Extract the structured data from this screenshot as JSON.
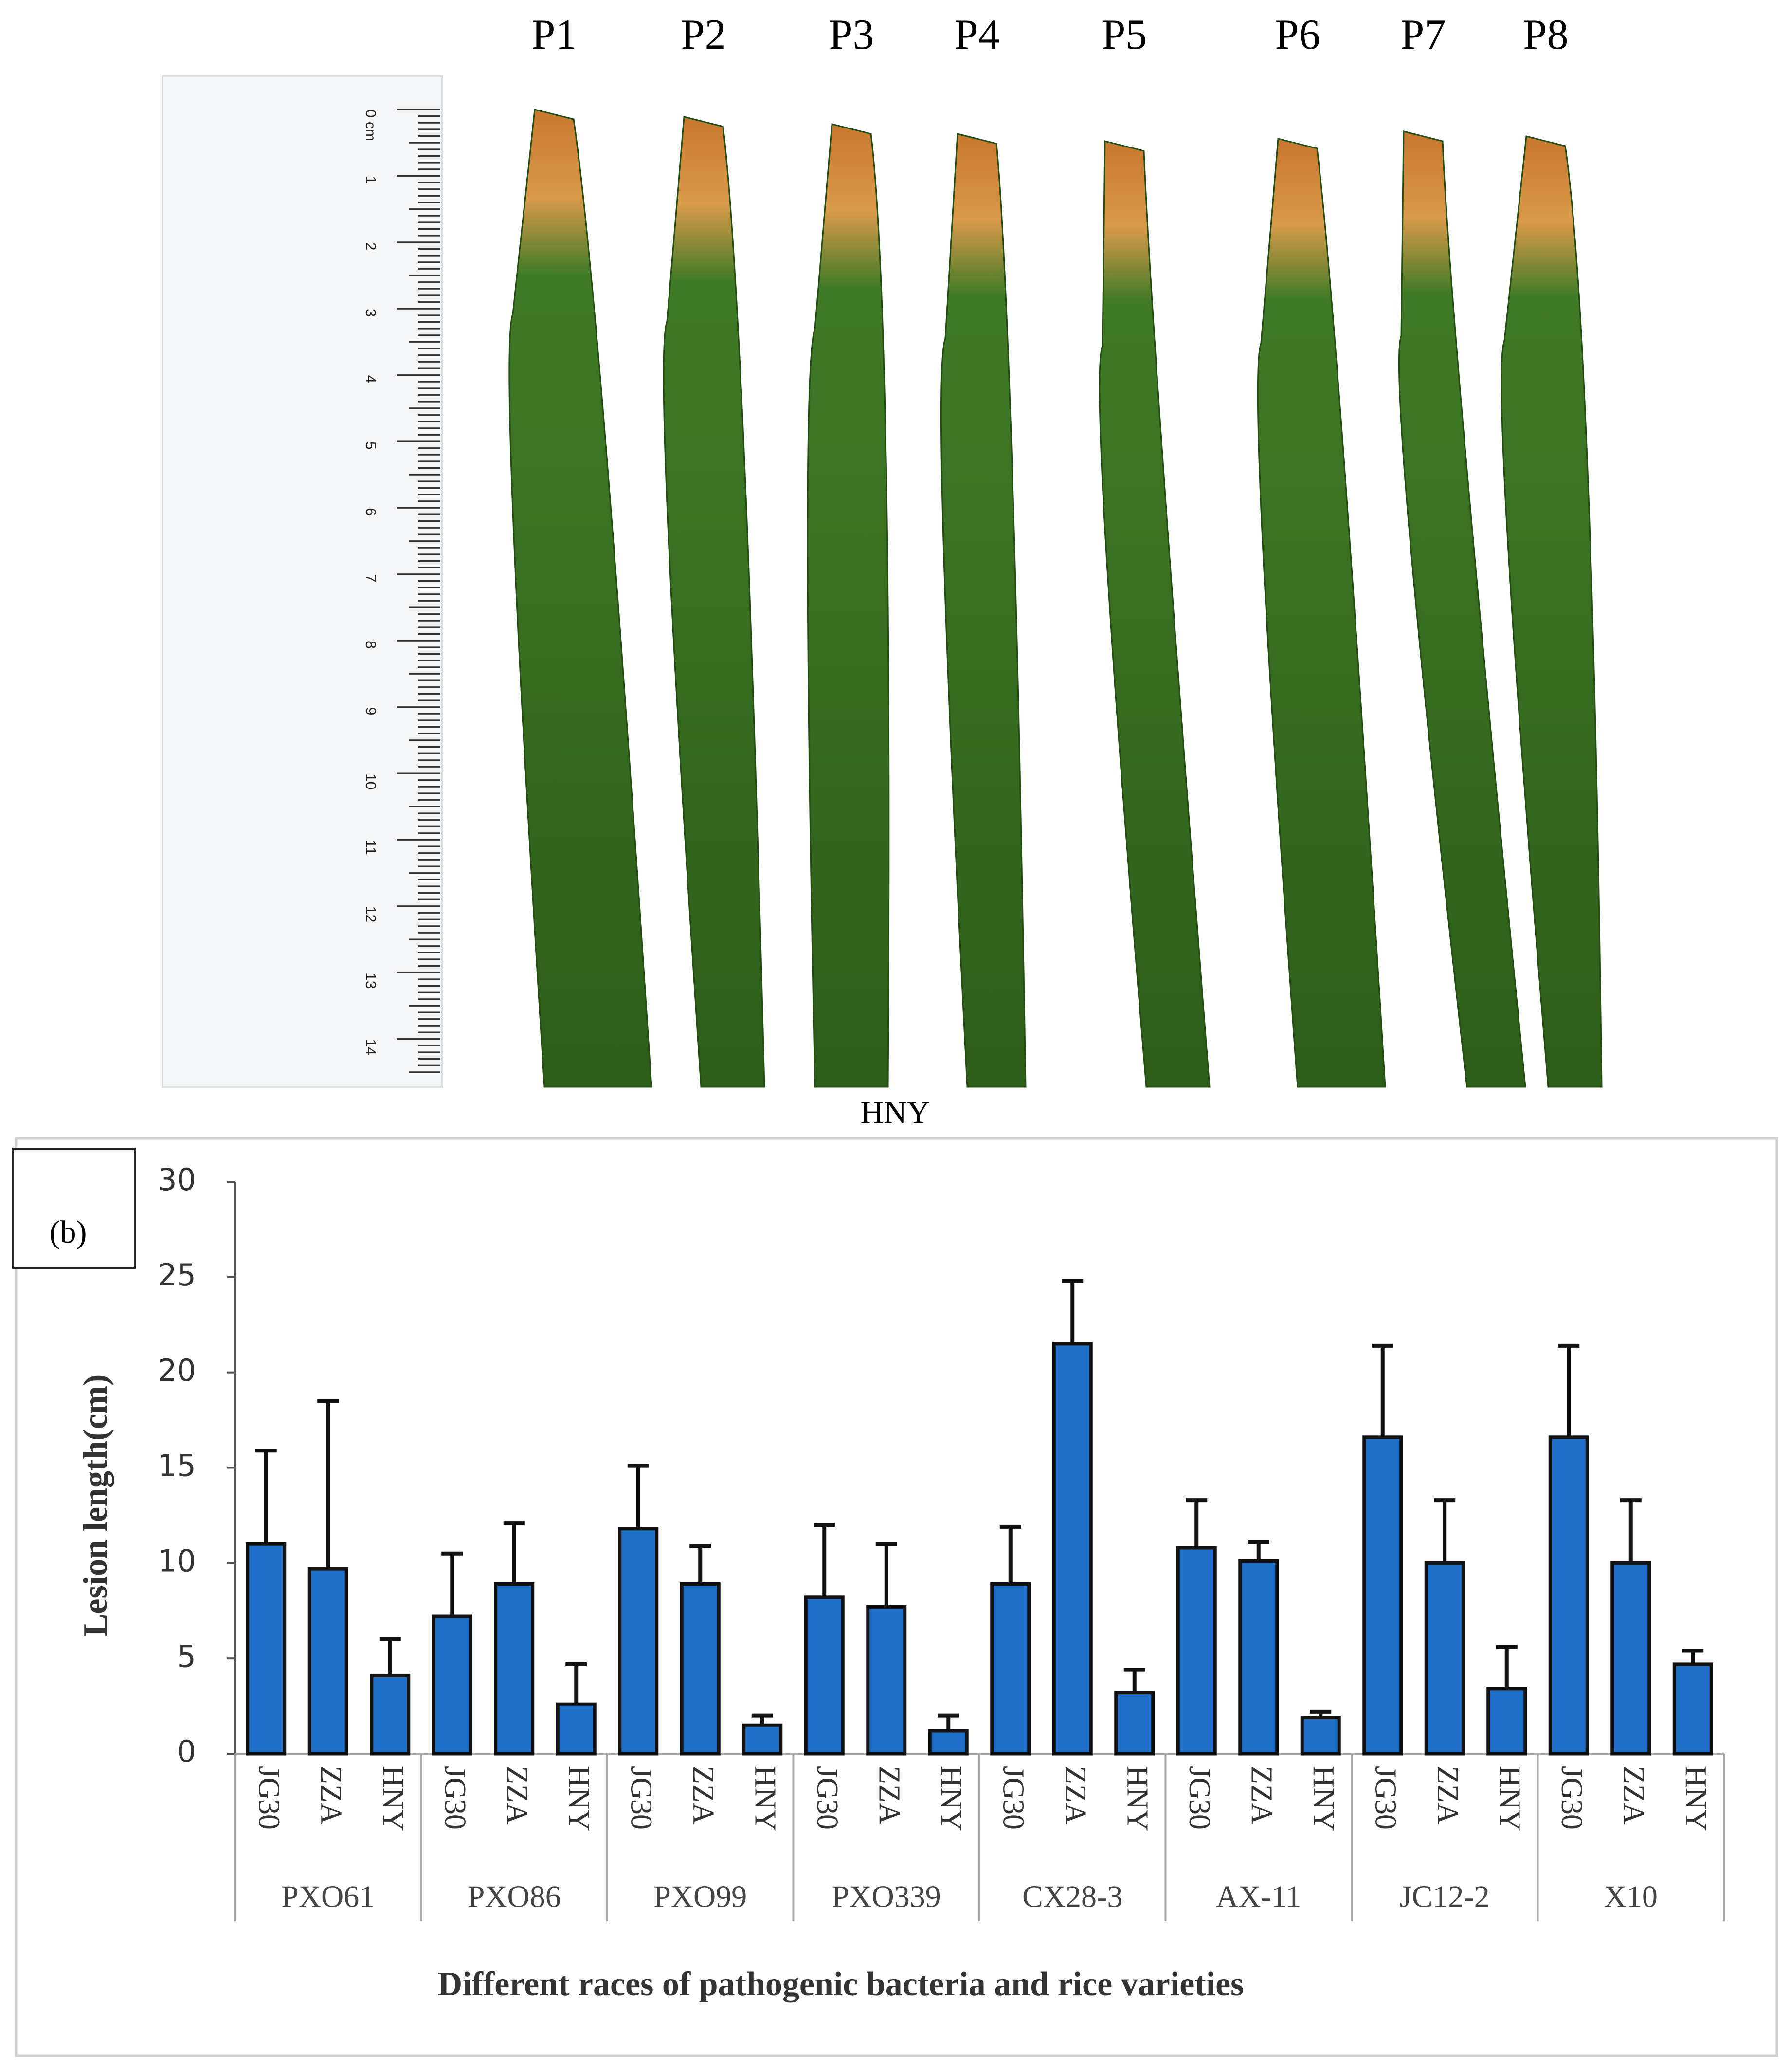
{
  "photo": {
    "labels": [
      "P1",
      "P2",
      "P3",
      "P4",
      "P5",
      "P6",
      "P7",
      "P8"
    ],
    "caption": "HNY",
    "ruler_labels": [
      "0 cm",
      "1",
      "2",
      "3",
      "4",
      "5",
      "6",
      "7",
      "8",
      "9",
      "10",
      "11",
      "12",
      "13",
      "14"
    ]
  },
  "chart_data": {
    "type": "bar",
    "panel_label": "(b)",
    "ylabel": "Lesion length(cm)",
    "xlabel": "Different races of pathogenic bacteria and rice varieties",
    "groups": [
      "PXO61",
      "PXO86",
      "PXO99",
      "PXO339",
      "CX28-3",
      "AX-11",
      "JC12-2",
      "X10"
    ],
    "categories": [
      "JG30",
      "ZZA",
      "HNY",
      "JG30",
      "ZZA",
      "HNY",
      "JG30",
      "ZZA",
      "HNY",
      "JG30",
      "ZZA",
      "HNY",
      "JG30",
      "ZZA",
      "HNY",
      "JG30",
      "ZZA",
      "HNY",
      "JG30",
      "ZZA",
      "HNY",
      "JG30",
      "ZZA",
      "HNY"
    ],
    "values": [
      11.0,
      9.7,
      4.1,
      7.2,
      8.9,
      2.6,
      11.8,
      8.9,
      1.5,
      8.2,
      7.7,
      1.2,
      8.9,
      21.5,
      3.2,
      10.8,
      10.1,
      1.9,
      16.6,
      10.0,
      3.4,
      16.6,
      10.0,
      4.7
    ],
    "errors": [
      4.9,
      8.8,
      1.9,
      3.3,
      3.2,
      2.1,
      3.3,
      2.0,
      0.5,
      3.8,
      3.3,
      0.8,
      3.0,
      3.3,
      1.2,
      2.5,
      1.0,
      0.3,
      4.8,
      3.3,
      2.2,
      4.8,
      3.3,
      0.7
    ],
    "color": "#1f6fc9",
    "ylim": [
      0,
      30
    ],
    "yticks": [
      0,
      5,
      10,
      15,
      20,
      25,
      30
    ]
  }
}
